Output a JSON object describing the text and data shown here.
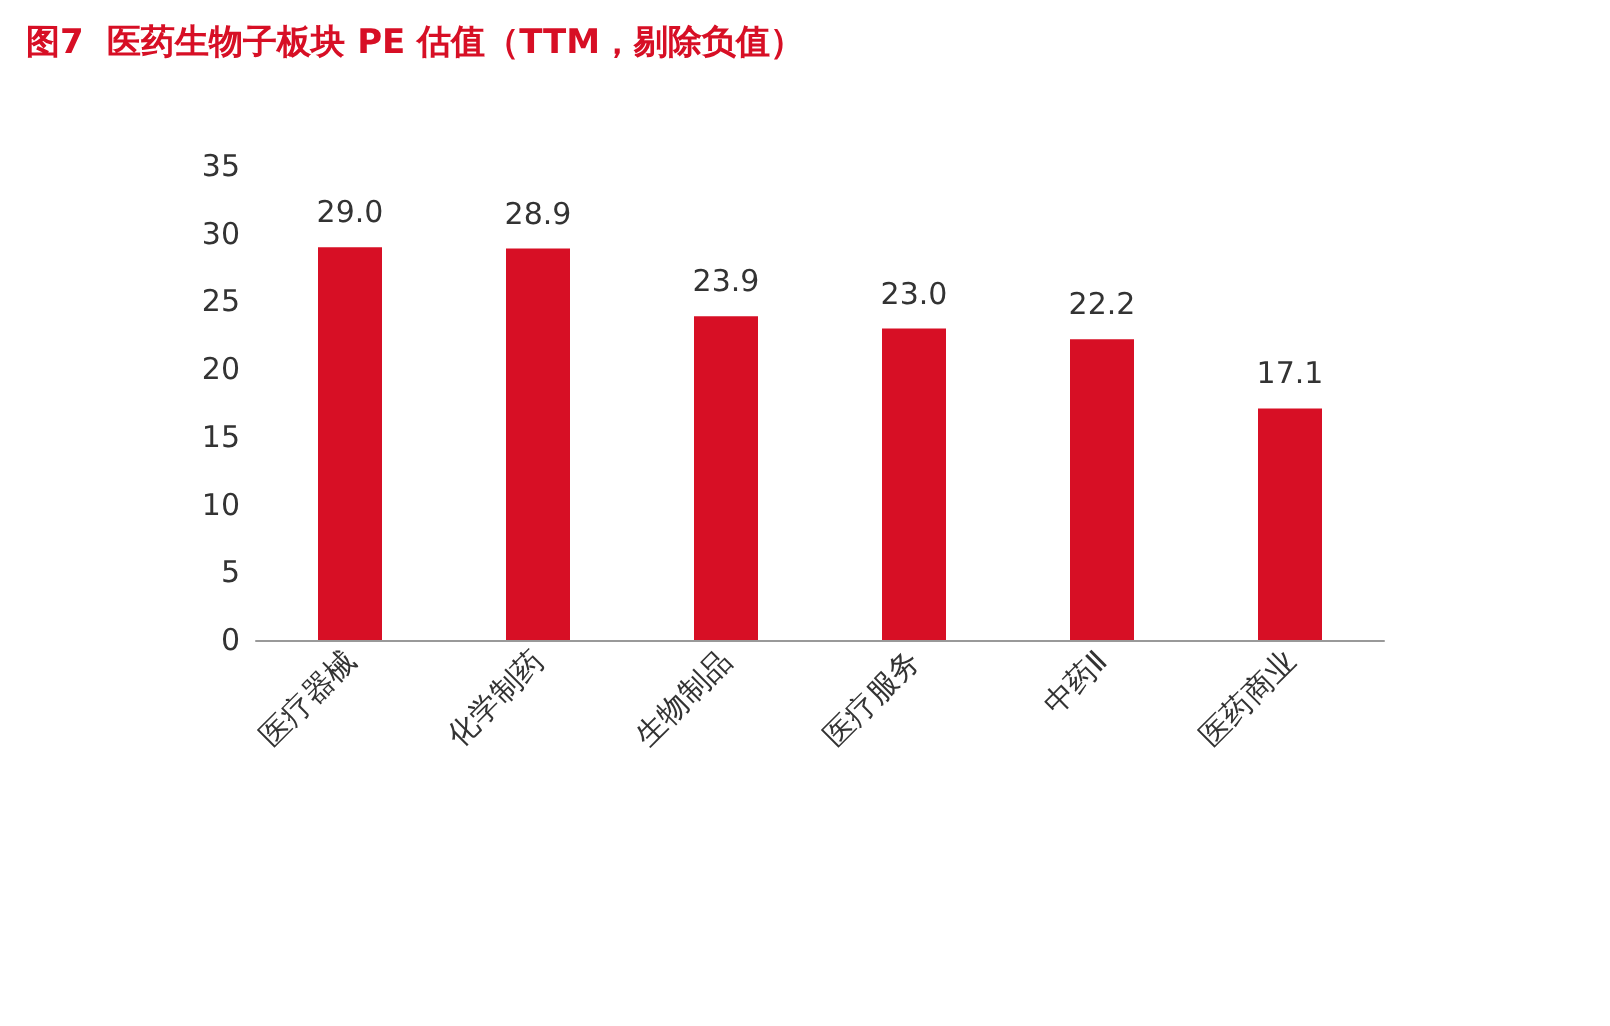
{
  "chart_data": {
    "type": "bar",
    "title": "图7  医药生物子板块 PE 估值（TTM，剔除负值）",
    "categories": [
      "医疗器械",
      "化学制药",
      "生物制品",
      "医疗服务",
      "中药Ⅱ",
      "医药商业"
    ],
    "values": [
      29.0,
      28.9,
      23.9,
      23.0,
      22.2,
      17.1
    ],
    "color": "#d70f25",
    "value_labels": [
      "29.0",
      "28.9",
      "23.9",
      "23.0",
      "22.2",
      "17.1"
    ],
    "ylim": [
      0,
      35
    ],
    "yticks": [
      0,
      5,
      10,
      15,
      20,
      25,
      30,
      35
    ],
    "grid": false
  }
}
